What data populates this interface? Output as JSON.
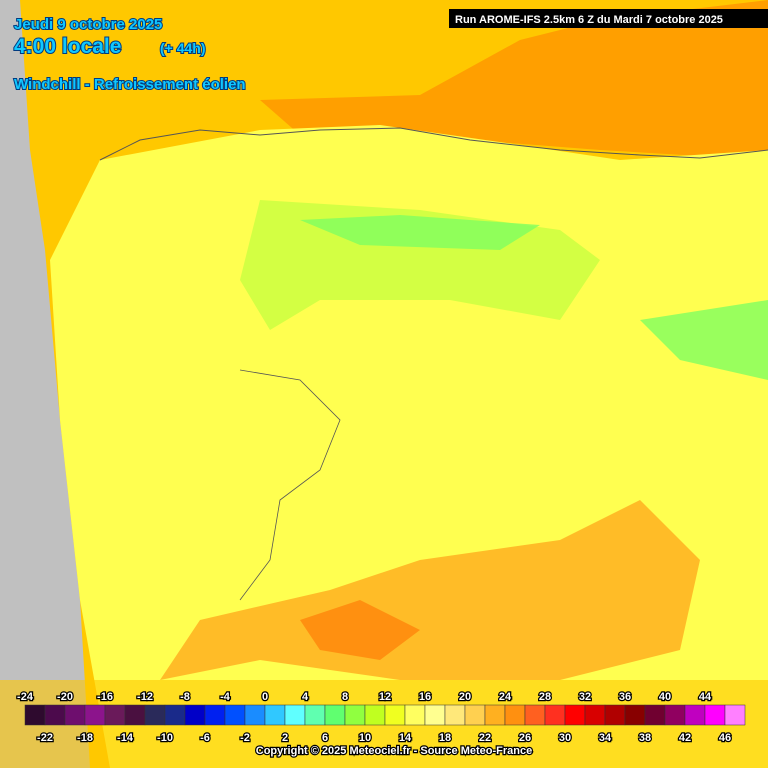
{
  "header": {
    "date": "Jeudi 9 octobre 2025",
    "time": "4:00 locale",
    "lead": "(+ 44h)",
    "subtitle": "Windchill - Refroissement éolien",
    "run": "Run AROME-IFS 2.5km 6 Z du Mardi 7 octobre 2025"
  },
  "legend": {
    "values": [
      -24,
      -22,
      -20,
      -18,
      -16,
      -14,
      -12,
      -10,
      -8,
      -6,
      -4,
      -2,
      0,
      2,
      4,
      6,
      8,
      10,
      12,
      14,
      16,
      18,
      20,
      22,
      24,
      26,
      28,
      30,
      32,
      34,
      36,
      38,
      40,
      42,
      44,
      46
    ],
    "colors": [
      "#2e0a2e",
      "#4c0a4c",
      "#6e0e6e",
      "#8c148c",
      "#6a1a5a",
      "#4a1040",
      "#2a2a5a",
      "#1a2a8a",
      "#0000c8",
      "#0020f0",
      "#0050ff",
      "#1a8cff",
      "#30c8ff",
      "#60ffff",
      "#60ffb0",
      "#60ff70",
      "#90ff40",
      "#c0ff20",
      "#f0ff20",
      "#ffff60",
      "#ffff90",
      "#ffe87a",
      "#ffd050",
      "#ffb020",
      "#ff9010",
      "#ff6020",
      "#ff3020",
      "#ff0000",
      "#d80000",
      "#b00000",
      "#880000",
      "#700030",
      "#900060",
      "#c000c0",
      "#ff00ff",
      "#ff80ff"
    ]
  },
  "copyright": "Copyright © 2025 Meteociel.fr - Source Meteo-France"
}
